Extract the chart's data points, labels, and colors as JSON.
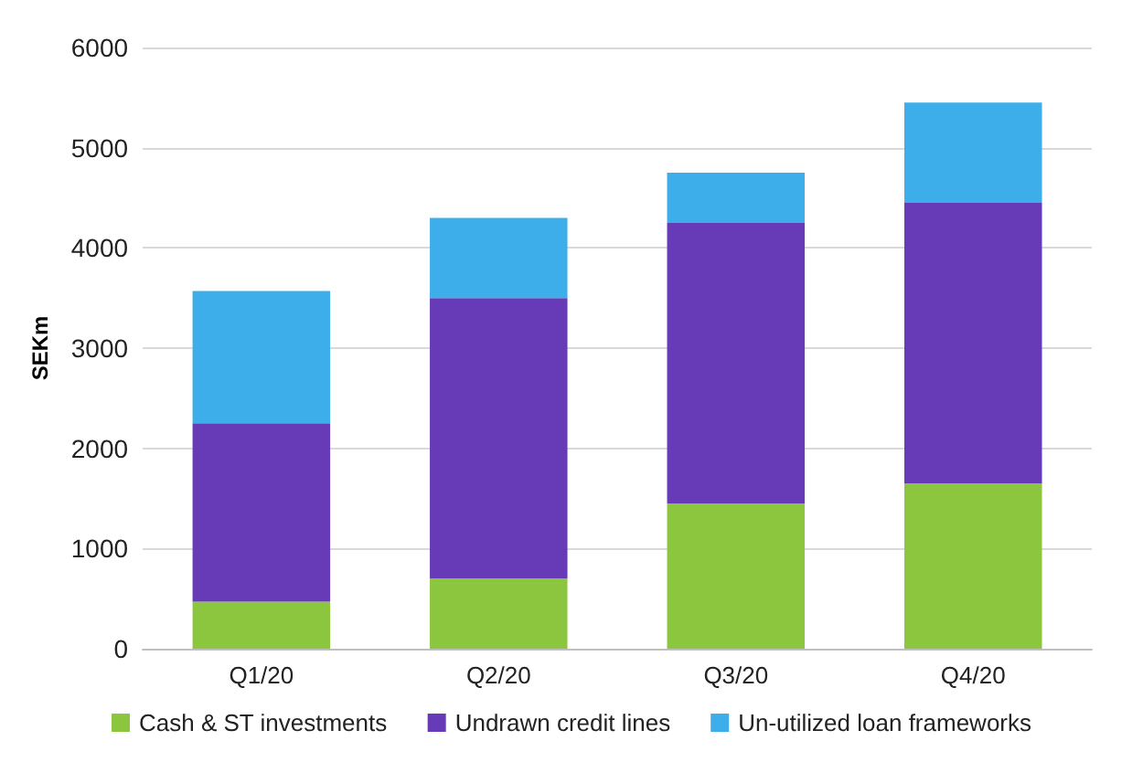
{
  "chart_data": {
    "type": "bar",
    "stacked": true,
    "ylabel": "SEKm",
    "categories": [
      "Q1/20",
      "Q2/20",
      "Q3/20",
      "Q4/20"
    ],
    "series": [
      {
        "name": "Cash & ST investments",
        "color": "#8cc63f",
        "values": [
          470,
          700,
          1450,
          1650
        ]
      },
      {
        "name": "Undrawn credit lines",
        "color": "#673ab7",
        "values": [
          1780,
          2800,
          2800,
          2800
        ]
      },
      {
        "name": "Un-utilized loan frameworks",
        "color": "#3daee9",
        "values": [
          1320,
          800,
          500,
          1000
        ]
      }
    ],
    "ylim": [
      0,
      6000
    ],
    "yticks": [
      0,
      1000,
      2000,
      3000,
      4000,
      5000,
      6000
    ],
    "grid": "y",
    "legend": "bottom"
  }
}
